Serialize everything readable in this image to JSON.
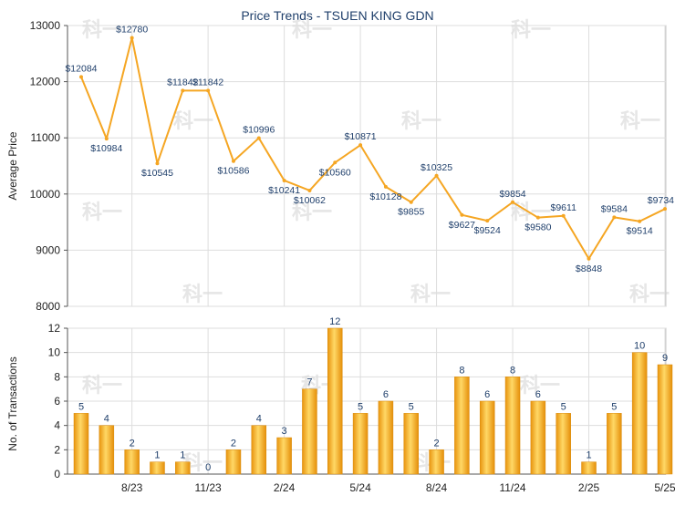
{
  "title": "Price Trends - TSUEN KING GDN",
  "chart_data": [
    {
      "type": "line",
      "title": "Price Trends - TSUEN KING GDN",
      "ylabel": "Average Price",
      "ylim": [
        8000,
        13000
      ],
      "yticks": [
        8000,
        9000,
        10000,
        11000,
        12000,
        13000
      ],
      "grid": true,
      "series": [
        {
          "values": [
            12084,
            10984,
            12780,
            10545,
            11842,
            11842,
            10586,
            10996,
            10241,
            10062,
            10560,
            10871,
            10128,
            9855,
            10325,
            9627,
            9524,
            9854,
            9580,
            9611,
            8848,
            9584,
            9514,
            9734
          ],
          "labels": [
            "$12084",
            "$10984",
            "$12780",
            "$10545",
            "$11842",
            "$11842",
            "$10586",
            "$10996",
            "$10241",
            "$10062",
            "$10560",
            "$10871",
            "$10128",
            "$9855",
            "$10325",
            "$9627",
            "$9524",
            "$9854",
            "$9580",
            "$9611",
            "$8848",
            "$9584",
            "$9514",
            "$9734"
          ],
          "color": "#f5a623"
        }
      ]
    },
    {
      "type": "bar",
      "ylabel": "No. of Transactions",
      "ylim": [
        0,
        12
      ],
      "yticks": [
        0,
        2,
        4,
        6,
        8,
        10,
        12
      ],
      "grid": true,
      "values": [
        5,
        4,
        2,
        1,
        1,
        0,
        2,
        4,
        3,
        7,
        12,
        5,
        6,
        5,
        2,
        8,
        6,
        8,
        6,
        5,
        1,
        5,
        10,
        9
      ],
      "xtick_labels": [
        {
          "index": 2,
          "label": "8/23"
        },
        {
          "index": 5,
          "label": "11/23"
        },
        {
          "index": 8,
          "label": "2/24"
        },
        {
          "index": 11,
          "label": "5/24"
        },
        {
          "index": 14,
          "label": "8/24"
        },
        {
          "index": 17,
          "label": "11/24"
        },
        {
          "index": 20,
          "label": "2/25"
        },
        {
          "index": 23,
          "label": "5/25"
        }
      ],
      "color": "#f5a623"
    }
  ],
  "colors": {
    "line": "#f5a623",
    "bar": "#f0a820",
    "label": "#1f3f6b",
    "grid": "#dddddd",
    "axis": "#555555"
  },
  "watermark_text": "科一"
}
